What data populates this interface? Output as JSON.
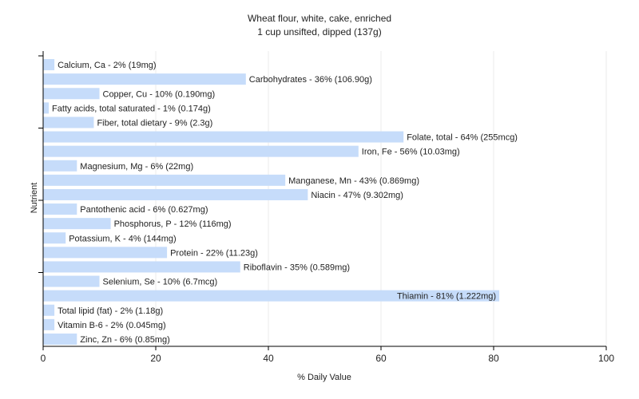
{
  "chart_data": {
    "type": "bar",
    "orientation": "horizontal",
    "title": "Wheat flour, white, cake, enriched",
    "subtitle": "1 cup unsifted, dipped (137g)",
    "xlabel": "% Daily Value",
    "ylabel": "Nutrient",
    "xlim": [
      0,
      100
    ],
    "xticks": [
      0,
      20,
      40,
      60,
      80,
      100
    ],
    "grid": true,
    "bar_color": "#c6dcfa",
    "categories": [
      "Calcium, Ca",
      "Carbohydrates",
      "Copper, Cu",
      "Fatty acids, total saturated",
      "Fiber, total dietary",
      "Folate, total",
      "Iron, Fe",
      "Magnesium, Mg",
      "Manganese, Mn",
      "Niacin",
      "Pantothenic acid",
      "Phosphorus, P",
      "Potassium, K",
      "Protein",
      "Riboflavin",
      "Selenium, Se",
      "Thiamin",
      "Total lipid (fat)",
      "Vitamin B-6",
      "Zinc, Zn"
    ],
    "values": [
      2,
      36,
      10,
      1,
      9,
      64,
      56,
      6,
      43,
      47,
      6,
      12,
      4,
      22,
      35,
      10,
      81,
      2,
      2,
      6
    ],
    "labels": [
      "Calcium, Ca - 2% (19mg)",
      "Carbohydrates - 36% (106.90g)",
      "Copper, Cu - 10% (0.190mg)",
      "Fatty acids, total saturated - 1% (0.174g)",
      "Fiber, total dietary - 9% (2.3g)",
      "Folate, total - 64% (255mcg)",
      "Iron, Fe - 56% (10.03mg)",
      "Magnesium, Mg - 6% (22mg)",
      "Manganese, Mn - 43% (0.869mg)",
      "Niacin - 47% (9.302mg)",
      "Pantothenic acid - 6% (0.627mg)",
      "Phosphorus, P - 12% (116mg)",
      "Potassium, K - 4% (144mg)",
      "Protein - 22% (11.23g)",
      "Riboflavin - 35% (0.589mg)",
      "Selenium, Se - 10% (6.7mcg)",
      "Thiamin - 81% (1.222mg)",
      "Total lipid (fat) - 2% (1.18g)",
      "Vitamin B-6 - 2% (0.045mg)",
      "Zinc, Zn - 6% (0.85mg)"
    ]
  }
}
